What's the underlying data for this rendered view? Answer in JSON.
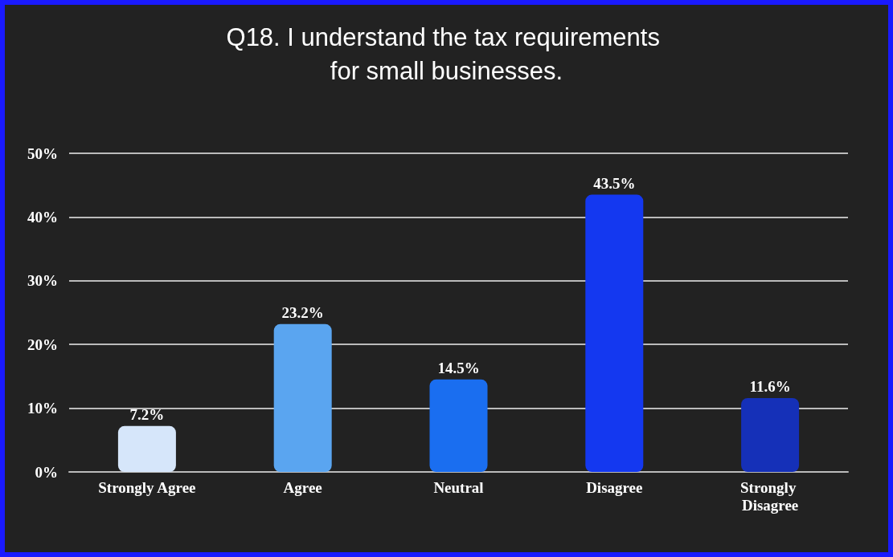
{
  "chart_data": {
    "type": "bar",
    "title": "Q18. I understand the tax requirements for small businesses.",
    "categories": [
      "Strongly Agree",
      "Agree",
      "Neutral",
      "Disagree",
      "Strongly Disagree"
    ],
    "values": [
      7.2,
      23.2,
      14.5,
      43.5,
      11.6
    ],
    "colors": [
      "#d6e6fa",
      "#5aa5f0",
      "#1a6ef0",
      "#1438f0",
      "#1530b8"
    ],
    "value_labels": [
      "7.2%",
      "23.2%",
      "14.5%",
      "43.5%",
      "11.6%"
    ],
    "ylim": [
      0,
      50
    ],
    "yticks": [
      {
        "value": 0,
        "label": "0%"
      },
      {
        "value": 10,
        "label": "10%"
      },
      {
        "value": 20,
        "label": "20%"
      },
      {
        "value": 30,
        "label": "30%"
      },
      {
        "value": 40,
        "label": "40%"
      },
      {
        "value": 50,
        "label": "50%"
      }
    ],
    "grid": "y"
  }
}
